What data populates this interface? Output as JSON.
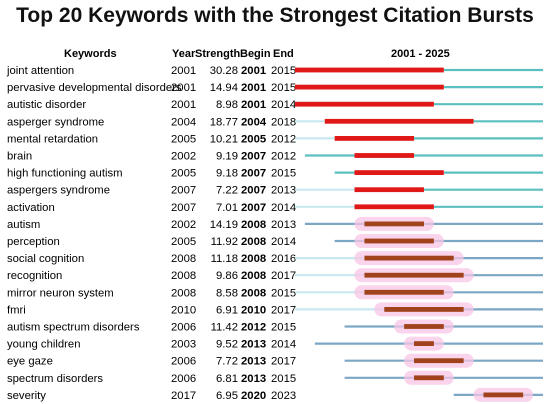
{
  "title": "Top 20 Keywords with the Strongest Citation Bursts",
  "columns": {
    "keywords": "Keywords",
    "year": "Year",
    "strength": "Strength",
    "begin": "Begin",
    "end": "End",
    "timeline": "2001 - 2025"
  },
  "chart_data": {
    "type": "table",
    "title": "Top 20 Keywords with the Strongest Citation Bursts",
    "timeline_range": [
      2001,
      2025
    ],
    "colors": {
      "burst_red": "#e01818",
      "burst_dark": "#a0421c",
      "pre_teal": "#5bbfbf",
      "pre_blue": "#7ba6c4",
      "pre_light": "#c8e9ef",
      "glow": "#f7c6e6"
    },
    "rows": [
      {
        "keyword": "joint attention",
        "year": "2001",
        "strength": "30.28",
        "begin": "2001",
        "end": "2015"
      },
      {
        "keyword": "pervasive developmental disorders",
        "year": "2001",
        "strength": "14.94",
        "begin": "2001",
        "end": "2015"
      },
      {
        "keyword": "autistic disorder",
        "year": "2001",
        "strength": "8.98",
        "begin": "2001",
        "end": "2014"
      },
      {
        "keyword": "asperger syndrome",
        "year": "2004",
        "strength": "18.77",
        "begin": "2004",
        "end": "2018"
      },
      {
        "keyword": "mental retardation",
        "year": "2005",
        "strength": "10.21",
        "begin": "2005",
        "end": "2012"
      },
      {
        "keyword": "brain",
        "year": "2002",
        "strength": "9.19",
        "begin": "2007",
        "end": "2012"
      },
      {
        "keyword": "high functioning autism",
        "year": "2005",
        "strength": "9.18",
        "begin": "2007",
        "end": "2015"
      },
      {
        "keyword": "aspergers syndrome",
        "year": "2007",
        "strength": "7.22",
        "begin": "2007",
        "end": "2013"
      },
      {
        "keyword": "activation",
        "year": "2007",
        "strength": "7.01",
        "begin": "2007",
        "end": "2014"
      },
      {
        "keyword": "autism",
        "year": "2002",
        "strength": "14.19",
        "begin": "2008",
        "end": "2013"
      },
      {
        "keyword": "perception",
        "year": "2005",
        "strength": "11.92",
        "begin": "2008",
        "end": "2014"
      },
      {
        "keyword": "social cognition",
        "year": "2008",
        "strength": "11.18",
        "begin": "2008",
        "end": "2016"
      },
      {
        "keyword": "recognition",
        "year": "2008",
        "strength": "9.86",
        "begin": "2008",
        "end": "2017"
      },
      {
        "keyword": "mirror neuron system",
        "year": "2008",
        "strength": "8.58",
        "begin": "2008",
        "end": "2015"
      },
      {
        "keyword": "fmri",
        "year": "2010",
        "strength": "6.91",
        "begin": "2010",
        "end": "2017"
      },
      {
        "keyword": "autism spectrum disorders",
        "year": "2006",
        "strength": "11.42",
        "begin": "2012",
        "end": "2015"
      },
      {
        "keyword": "young children",
        "year": "2003",
        "strength": "9.52",
        "begin": "2013",
        "end": "2014"
      },
      {
        "keyword": "eye gaze",
        "year": "2006",
        "strength": "7.72",
        "begin": "2013",
        "end": "2017"
      },
      {
        "keyword": "spectrum disorders",
        "year": "2006",
        "strength": "6.81",
        "begin": "2013",
        "end": "2015"
      },
      {
        "keyword": "severity",
        "year": "2017",
        "strength": "6.95",
        "begin": "2020",
        "end": "2023"
      }
    ]
  }
}
